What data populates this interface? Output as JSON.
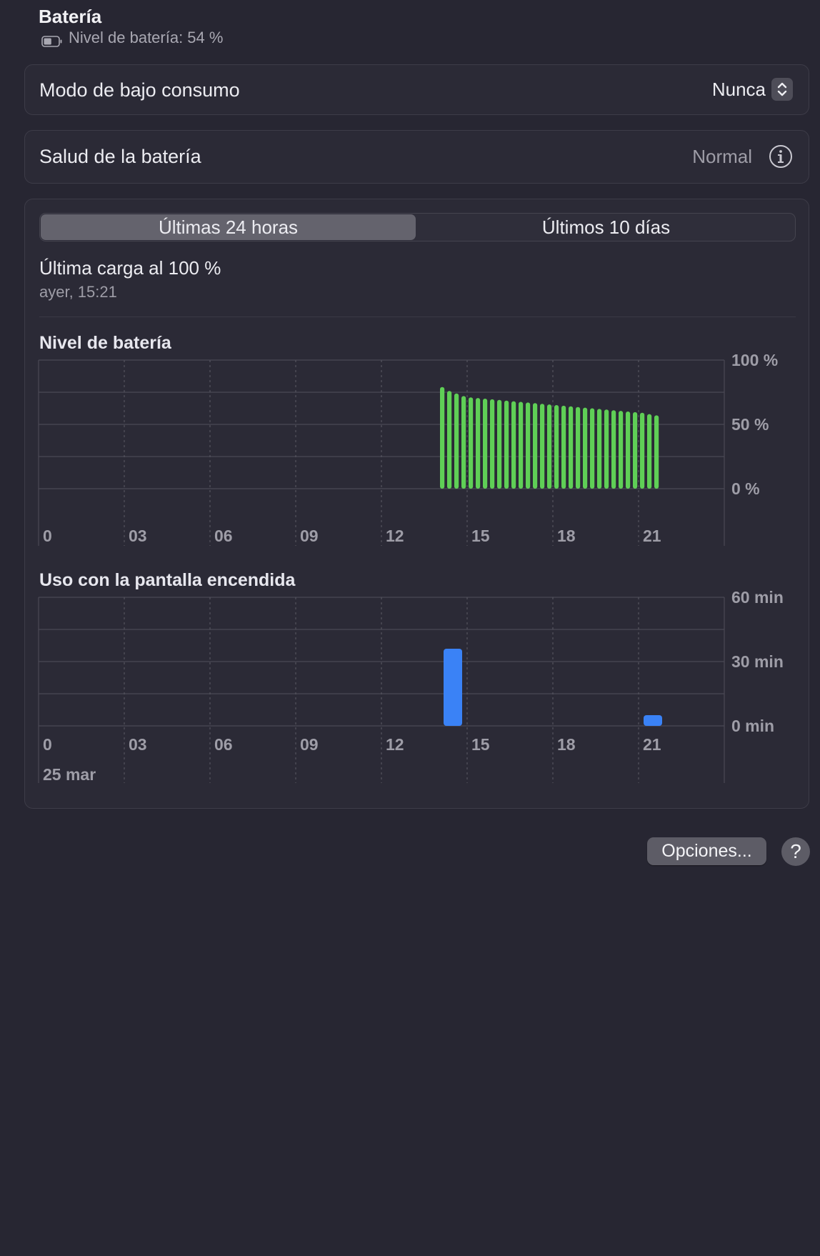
{
  "header": {
    "title": "Batería",
    "battery_label": "Nivel de batería: 54 %",
    "battery_level": 0.54
  },
  "low_power": {
    "label": "Modo de bajo consumo",
    "value": "Nunca"
  },
  "health": {
    "label": "Salud de la batería",
    "value": "Normal"
  },
  "tabs": [
    {
      "label": "Últimas 24 horas",
      "active": true
    },
    {
      "label": "Últimos 10 días",
      "active": false
    }
  ],
  "last_charge": {
    "title": "Última carga al 100 %",
    "time": "ayer, 15:21"
  },
  "colors": {
    "battery_bar": "#5fcf56",
    "usage_bar": "#3a82f6"
  },
  "chart_data": [
    {
      "type": "bar",
      "title": "Nivel de batería",
      "ylim": [
        0,
        100
      ],
      "yticks": [
        "100 %",
        "50 %",
        "0 %"
      ],
      "xticks": [
        "0",
        "03",
        "06",
        "09",
        "12",
        "15",
        "18",
        "21"
      ],
      "x_start": 14.0,
      "x_step": 0.25,
      "values": [
        79,
        76,
        74,
        72,
        71,
        70.5,
        70,
        69.5,
        69,
        68.5,
        68,
        67.5,
        67,
        66.5,
        66,
        65.5,
        65,
        64.5,
        64,
        63.5,
        63,
        62.5,
        62,
        61.5,
        61,
        60.5,
        60,
        59.5,
        59,
        58,
        57
      ],
      "grid": true
    },
    {
      "type": "bar",
      "title": "Uso con la pantalla encendida",
      "ylim": [
        0,
        60
      ],
      "yticks": [
        "60 min",
        "30 min",
        "0 min"
      ],
      "xticks": [
        "0",
        "03",
        "06",
        "09",
        "12",
        "15",
        "18",
        "21"
      ],
      "date_label": "25 mar",
      "hours": [
        14,
        21
      ],
      "values": [
        36,
        5
      ],
      "grid": true
    }
  ],
  "footer": {
    "options_label": "Opciones...",
    "help_label": "?"
  }
}
